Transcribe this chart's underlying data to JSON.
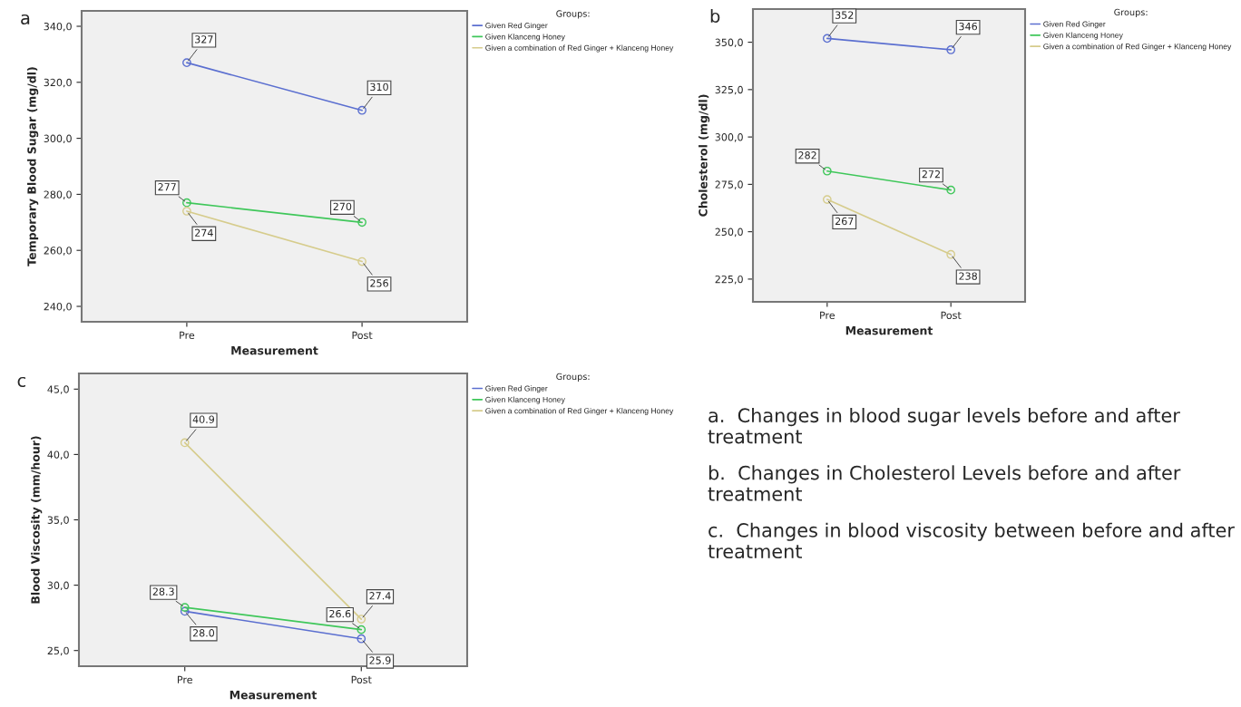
{
  "chart_data": [
    {
      "type": "line",
      "title": "a",
      "xlabel": "Measurement",
      "ylabel": "Temporary Blood Sugar (mg/dl)",
      "legend_title": "Groups:",
      "legend": "top right",
      "marker": "circle",
      "data_labels": true,
      "categories": [
        "Pre",
        "Post"
      ],
      "ylim": [
        234.5,
        345.5
      ],
      "yticks": [
        {
          "value": 240,
          "label": "240,0"
        },
        {
          "value": 260,
          "label": "260,0"
        },
        {
          "value": 280,
          "label": "280,0"
        },
        {
          "value": 300,
          "label": "300,0"
        },
        {
          "value": 320,
          "label": "320,0"
        },
        {
          "value": 340,
          "label": "340,0"
        }
      ],
      "series": [
        {
          "name": "Given Red Ginger",
          "color": "#5b6fd0",
          "values": [
            327,
            310
          ]
        },
        {
          "name": "Given Klanceng Honey",
          "color": "#3fc75a",
          "values": [
            277,
            270
          ]
        },
        {
          "name": "Given a combination of Red Ginger + Klanceng Honey",
          "color": "#d6cc8c",
          "values": [
            274,
            256
          ]
        }
      ]
    },
    {
      "type": "line",
      "title": "b",
      "xlabel": "Measurement",
      "ylabel": "Cholesterol (mg/dl)",
      "legend_title": "Groups:",
      "legend": "top right",
      "marker": "circle",
      "data_labels": true,
      "categories": [
        "Pre",
        "Post"
      ],
      "ylim": [
        213,
        367.5
      ],
      "yticks": [
        {
          "value": 225,
          "label": "225,0"
        },
        {
          "value": 250,
          "label": "250,0"
        },
        {
          "value": 275,
          "label": "275,0"
        },
        {
          "value": 300,
          "label": "300,0"
        },
        {
          "value": 325,
          "label": "325,0"
        },
        {
          "value": 350,
          "label": "350,0"
        }
      ],
      "series": [
        {
          "name": "Given Red Ginger",
          "color": "#5b6fd0",
          "values": [
            352,
            346
          ]
        },
        {
          "name": "Given Klanceng Honey",
          "color": "#3fc75a",
          "values": [
            282,
            272
          ]
        },
        {
          "name": "Given a combination of Red Ginger + Klanceng Honey",
          "color": "#d6cc8c",
          "values": [
            267,
            238
          ]
        }
      ]
    },
    {
      "type": "line",
      "title": "c",
      "xlabel": "Measurement",
      "ylabel": "Blood Viscosity (mm/hour)",
      "legend_title": "Groups:",
      "legend": "top right",
      "marker": "circle",
      "data_labels": true,
      "categories": [
        "Pre",
        "Post"
      ],
      "ylim": [
        23.8,
        46.2
      ],
      "yticks": [
        {
          "value": 25,
          "label": "25,0"
        },
        {
          "value": 30,
          "label": "30,0"
        },
        {
          "value": 35,
          "label": "35,0"
        },
        {
          "value": 40,
          "label": "40,0"
        },
        {
          "value": 45,
          "label": "45,0"
        }
      ],
      "series": [
        {
          "name": "Given Red Ginger",
          "color": "#5b6fd0",
          "values": [
            28.0,
            25.9
          ],
          "value_labels": [
            "28.0",
            "25.9"
          ]
        },
        {
          "name": "Given Klanceng Honey",
          "color": "#3fc75a",
          "values": [
            28.3,
            26.6
          ]
        },
        {
          "name": "Given a combination of Red Ginger + Klanceng Honey",
          "color": "#d6cc8c",
          "values": [
            40.9,
            27.4
          ]
        }
      ]
    },
    {
      "type": "other",
      "annotations": [
        "a.  Changes in blood sugar levels before and after treatment",
        "b.  Changes in Cholesterol Levels before and after treatment",
        "c.  Changes in blood viscosity between before and after treatment"
      ]
    }
  ]
}
